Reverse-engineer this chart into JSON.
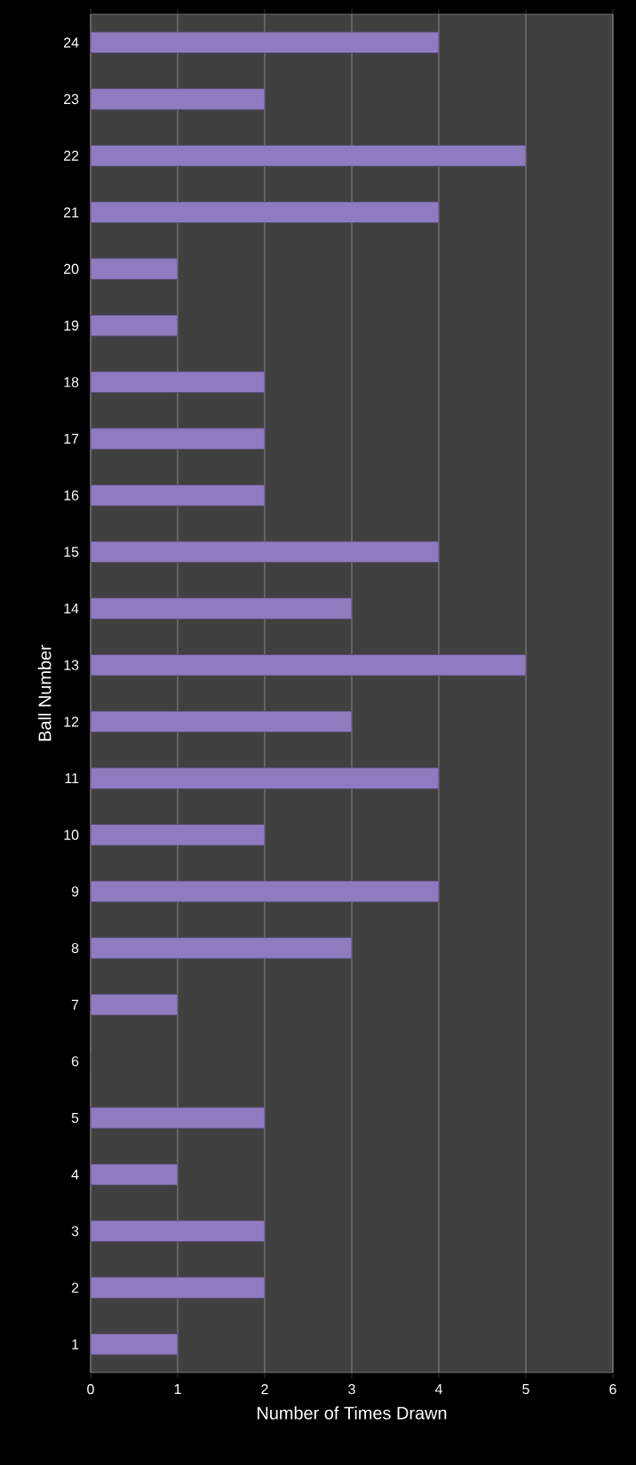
{
  "chart_data": {
    "type": "bar",
    "orientation": "horizontal",
    "xlabel": "Number  of Times Drawn",
    "ylabel": "Ball Number",
    "categories": [
      "24",
      "23",
      "22",
      "21",
      "20",
      "19",
      "18",
      "17",
      "16",
      "15",
      "14",
      "13",
      "12",
      "11",
      "10",
      "9",
      "8",
      "7",
      "6",
      "5",
      "4",
      "3",
      "2",
      "1"
    ],
    "values": [
      4,
      2,
      5,
      4,
      1,
      1,
      2,
      2,
      2,
      4,
      3,
      5,
      3,
      4,
      2,
      4,
      3,
      1,
      0,
      2,
      1,
      2,
      2,
      1
    ],
    "color": "#8f7cc0",
    "xlim": [
      0,
      6
    ],
    "xticks": [
      0,
      1,
      2,
      3,
      4,
      5,
      6
    ],
    "grid": "x"
  }
}
